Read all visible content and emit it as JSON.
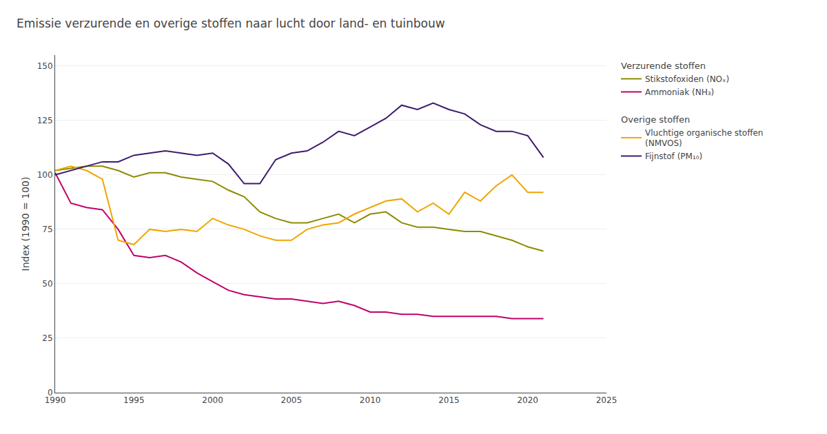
{
  "chart_data": {
    "type": "line",
    "title": "Emissie verzurende en overige stoffen naar lucht door land- en tuinbouw",
    "ylabel": "Index (1990 = 100)",
    "x": [
      1990,
      1991,
      1992,
      1993,
      1994,
      1995,
      1996,
      1997,
      1998,
      1999,
      2000,
      2001,
      2002,
      2003,
      2004,
      2005,
      2006,
      2007,
      2008,
      2009,
      2010,
      2011,
      2012,
      2013,
      2014,
      2015,
      2016,
      2017,
      2018,
      2019,
      2020,
      2021
    ],
    "series": [
      {
        "name": "Stikstofoxiden (NOₓ)",
        "group": "Verzurende stoffen",
        "color": "#8B8B00",
        "values": [
          102,
          103,
          104,
          104,
          102,
          99,
          101,
          101,
          99,
          98,
          97,
          93,
          90,
          83,
          80,
          78,
          78,
          80,
          82,
          78,
          82,
          83,
          78,
          76,
          76,
          75,
          74,
          74,
          72,
          70,
          67,
          65
        ]
      },
      {
        "name": "Ammoniak (NH₃)",
        "group": "Verzurende stoffen",
        "color": "#c0006a",
        "values": [
          101,
          87,
          85,
          84,
          75,
          63,
          62,
          63,
          60,
          55,
          51,
          47,
          45,
          44,
          43,
          43,
          42,
          41,
          42,
          40,
          37,
          37,
          36,
          36,
          35,
          35,
          35,
          35,
          35,
          34,
          34,
          34
        ]
      },
      {
        "name": "Vluchtige organische stoffen\n(NMVOS)",
        "group": "Overige stoffen",
        "color": "#f0a500",
        "values": [
          102,
          104,
          102,
          98,
          70,
          68,
          75,
          74,
          75,
          74,
          80,
          77,
          75,
          72,
          70,
          70,
          75,
          77,
          78,
          82,
          85,
          88,
          89,
          83,
          87,
          82,
          92,
          88,
          95,
          100,
          92,
          92
        ]
      },
      {
        "name": "Fijnstof (PM₁₀)",
        "group": "Overige stoffen",
        "color": "#3d1a6e",
        "values": [
          100,
          102,
          104,
          106,
          106,
          109,
          110,
          111,
          110,
          109,
          110,
          105,
          96,
          96,
          107,
          110,
          111,
          115,
          120,
          118,
          122,
          126,
          132,
          130,
          133,
          130,
          128,
          123,
          120,
          120,
          118,
          108
        ]
      }
    ],
    "xlim": [
      1990,
      2025
    ],
    "xticks": [
      1990,
      1995,
      2000,
      2005,
      2010,
      2015,
      2020,
      2025
    ],
    "ylim": [
      0,
      155
    ],
    "yticks": [
      0,
      25,
      50,
      75,
      100,
      125,
      150
    ],
    "grid": "y",
    "legend": "right"
  }
}
